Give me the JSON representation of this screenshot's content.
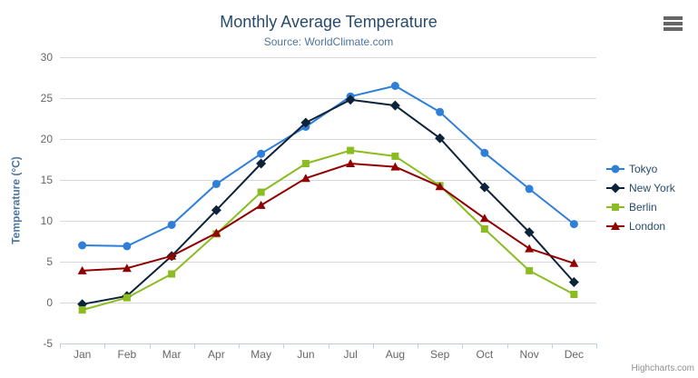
{
  "header": {
    "title": "Monthly Average Temperature",
    "subtitle": "Source: WorldClimate.com"
  },
  "toolbar": {
    "context_menu_icon": "hamburger-icon"
  },
  "credits": {
    "label": "Highcharts.com"
  },
  "colors": {
    "background": "#ffffff",
    "title_text": "#274b6d",
    "subtitle_text": "#4d759e",
    "axis_label": "#666666",
    "axis_title": "#4d759e",
    "gridline": "#d8d8d8",
    "axis_line": "#c0d0e0",
    "legend_text": "#274b6d",
    "credits_text": "#909090",
    "menu_icon": "#666666",
    "tokyo": "#2f7ed8",
    "new_york": "#0d233a",
    "berlin": "#8bbc21",
    "london": "#910000"
  },
  "chart_data": {
    "type": "line",
    "title": "Monthly Average Temperature",
    "subtitle": "Source: WorldClimate.com",
    "xlabel": "",
    "ylabel": "Temperature (°C)",
    "categories": [
      "Jan",
      "Feb",
      "Mar",
      "Apr",
      "May",
      "Jun",
      "Jul",
      "Aug",
      "Sep",
      "Oct",
      "Nov",
      "Dec"
    ],
    "ylim": [
      -5,
      30
    ],
    "ytick_interval": 5,
    "yticks": [
      -5,
      0,
      5,
      10,
      15,
      20,
      25,
      30
    ],
    "grid": true,
    "legend_position": "right",
    "series": [
      {
        "name": "Tokyo",
        "color": "#2f7ed8",
        "marker": "circle",
        "values": [
          7.0,
          6.9,
          9.5,
          14.5,
          18.2,
          21.5,
          25.2,
          26.5,
          23.3,
          18.3,
          13.9,
          9.6
        ]
      },
      {
        "name": "New York",
        "color": "#0d233a",
        "marker": "diamond",
        "values": [
          -0.2,
          0.8,
          5.7,
          11.3,
          17.0,
          22.0,
          24.8,
          24.1,
          20.1,
          14.1,
          8.6,
          2.5
        ]
      },
      {
        "name": "Berlin",
        "color": "#8bbc21",
        "marker": "square",
        "values": [
          -0.9,
          0.6,
          3.5,
          8.4,
          13.5,
          17.0,
          18.6,
          17.9,
          14.3,
          9.0,
          3.9,
          1.0
        ]
      },
      {
        "name": "London",
        "color": "#910000",
        "marker": "triangle",
        "values": [
          3.9,
          4.2,
          5.7,
          8.5,
          11.9,
          15.2,
          17.0,
          16.6,
          14.2,
          10.3,
          6.6,
          4.8
        ]
      }
    ]
  }
}
